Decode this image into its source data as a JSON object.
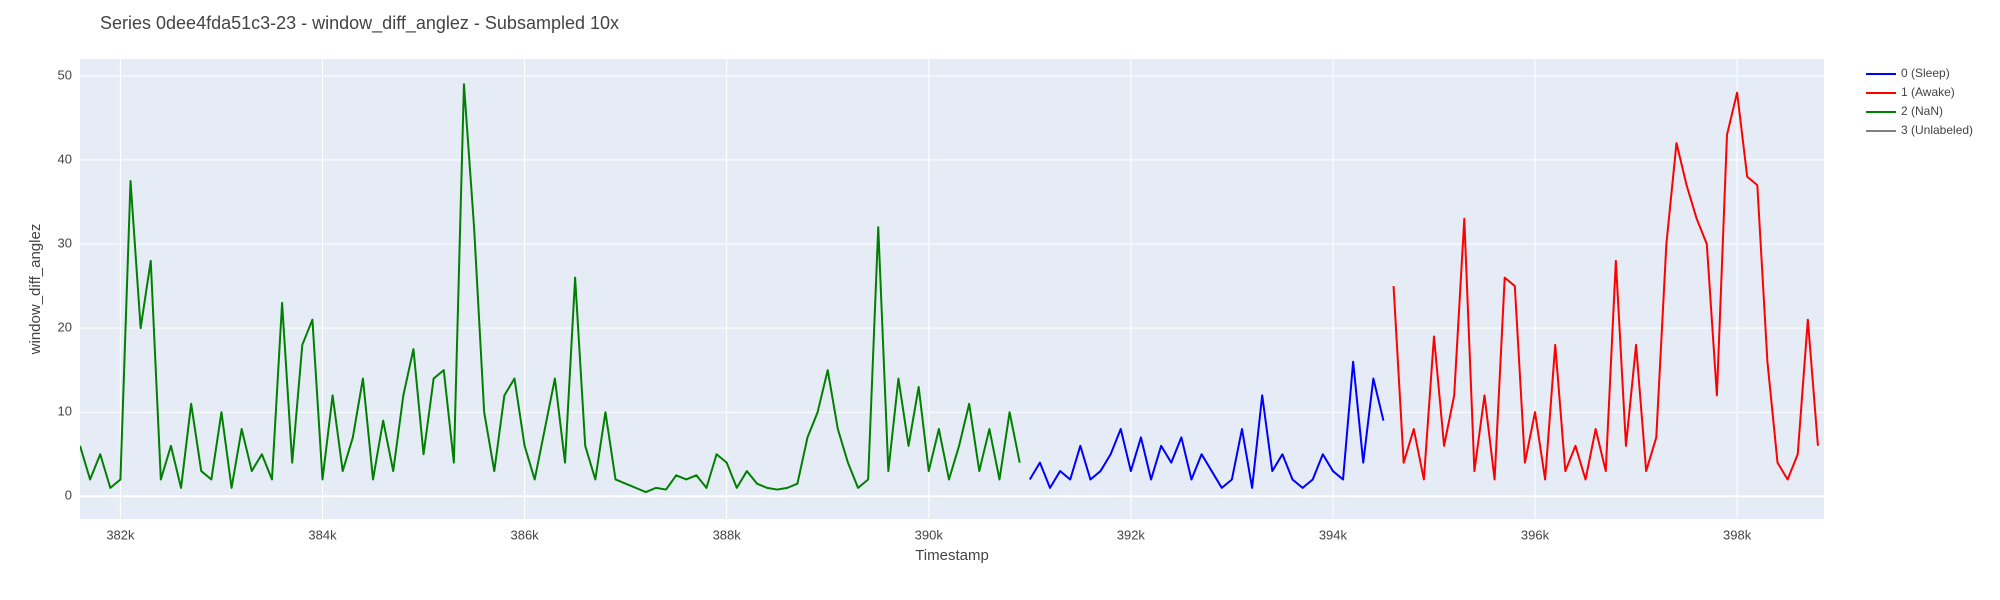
{
  "chart_data": {
    "type": "line",
    "title": "Series 0dee4fda51c3-23 - window_diff_anglez - Subsampled 10x",
    "x_label": "Timestamp",
    "y_label": "window_diff_anglez",
    "xlim": [
      381600,
      398860
    ],
    "ylim": [
      -2.7,
      52
    ],
    "xticks": [
      {
        "value": 382000,
        "label": "382k"
      },
      {
        "value": 384000,
        "label": "384k"
      },
      {
        "value": 386000,
        "label": "386k"
      },
      {
        "value": 388000,
        "label": "388k"
      },
      {
        "value": 390000,
        "label": "390k"
      },
      {
        "value": 392000,
        "label": "392k"
      },
      {
        "value": 394000,
        "label": "394k"
      },
      {
        "value": 396000,
        "label": "396k"
      },
      {
        "value": 398000,
        "label": "398k"
      }
    ],
    "yticks": [
      0,
      10,
      20,
      30,
      40,
      50
    ],
    "grid": true,
    "legend": "outside-right",
    "series": [
      {
        "name": "0 (Sleep)",
        "color": "#0000ff",
        "x": [
          391000,
          391100,
          391200,
          391300,
          391400,
          391500,
          391600,
          391700,
          391800,
          391900,
          392000,
          392100,
          392200,
          392300,
          392400,
          392500,
          392600,
          392700,
          392800,
          392900,
          393000,
          393100,
          393200,
          393300,
          393400,
          393500,
          393600,
          393700,
          393800,
          393900,
          394000,
          394100,
          394200,
          394300,
          394400,
          394500
        ],
        "values": [
          2,
          4,
          1,
          3,
          2,
          6,
          2,
          3,
          5,
          8,
          3,
          7,
          2,
          6,
          4,
          7,
          2,
          5,
          3,
          1,
          2,
          8,
          1,
          12,
          3,
          5,
          2,
          1,
          2,
          5,
          3,
          2,
          16,
          4,
          14,
          9
        ]
      },
      {
        "name": "1 (Awake)",
        "color": "#ff0000",
        "x": [
          394600,
          394700,
          394800,
          394900,
          395000,
          395100,
          395200,
          395300,
          395400,
          395500,
          395600,
          395700,
          395800,
          395900,
          396000,
          396100,
          396200,
          396300,
          396400,
          396500,
          396600,
          396700,
          396800,
          396900,
          397000,
          397100,
          397200,
          397300,
          397400,
          397500,
          397600,
          397700,
          397800,
          397900,
          398000,
          398100,
          398200,
          398300,
          398400,
          398500,
          398600,
          398700,
          398800
        ],
        "values": [
          25,
          4,
          8,
          2,
          19,
          6,
          12,
          33,
          3,
          12,
          2,
          26,
          25,
          4,
          10,
          2,
          18,
          3,
          6,
          2,
          8,
          3,
          28,
          6,
          18,
          3,
          7,
          30,
          42,
          37,
          33,
          30,
          12,
          43,
          48,
          38,
          37,
          16,
          4,
          2,
          5,
          21,
          6
        ]
      },
      {
        "name": "2 (NaN)",
        "color": "#008000",
        "x": [
          381600,
          381700,
          381800,
          381900,
          382000,
          382100,
          382200,
          382300,
          382400,
          382500,
          382600,
          382700,
          382800,
          382900,
          383000,
          383100,
          383200,
          383300,
          383400,
          383500,
          383600,
          383700,
          383800,
          383900,
          384000,
          384100,
          384200,
          384300,
          384400,
          384500,
          384600,
          384700,
          384800,
          384900,
          385000,
          385100,
          385200,
          385300,
          385400,
          385500,
          385600,
          385700,
          385800,
          385900,
          386000,
          386100,
          386200,
          386300,
          386400,
          386500,
          386600,
          386700,
          386800,
          386900,
          387000,
          387100,
          387200,
          387300,
          387400,
          387500,
          387600,
          387700,
          387800,
          387900,
          388000,
          388100,
          388200,
          388300,
          388400,
          388500,
          388600,
          388700,
          388800,
          388900,
          389000,
          389100,
          389200,
          389300,
          389400,
          389500,
          389600,
          389700,
          389800,
          389900,
          390000,
          390100,
          390200,
          390300,
          390400,
          390500,
          390600,
          390700,
          390800,
          390900
        ],
        "values": [
          6,
          2,
          5,
          1,
          2,
          37.5,
          20,
          28,
          2,
          6,
          1,
          11,
          3,
          2,
          10,
          1,
          8,
          3,
          5,
          2,
          23,
          4,
          18,
          21,
          2,
          12,
          3,
          7,
          14,
          2,
          9,
          3,
          12,
          17.5,
          5,
          14,
          15,
          4,
          49,
          32,
          10,
          3,
          12,
          14,
          6,
          2,
          8,
          14,
          4,
          26,
          6,
          2,
          10,
          2,
          1.5,
          1,
          0.5,
          1,
          0.8,
          2.5,
          2,
          2.5,
          1,
          5,
          4,
          1,
          3,
          1.5,
          1,
          0.8,
          1,
          1.5,
          7,
          10,
          15,
          8,
          4,
          1,
          2,
          32,
          3,
          14,
          6,
          13,
          3,
          8,
          2,
          6,
          11,
          3,
          8,
          2,
          10,
          4
        ]
      },
      {
        "name": "3 (Unlabeled)",
        "color": "#808080",
        "x": [],
        "values": []
      }
    ]
  }
}
